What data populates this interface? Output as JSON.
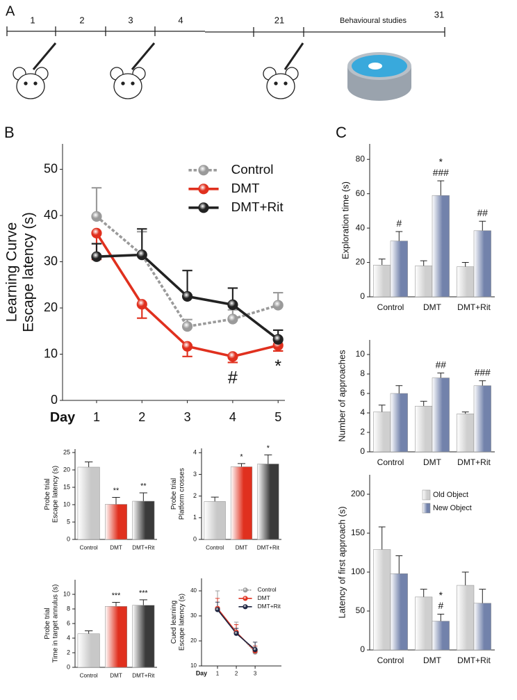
{
  "panel_labels": [
    "A",
    "B",
    "C"
  ],
  "timeline": {
    "labels": [
      "1",
      "2",
      "3",
      "4",
      "21",
      "Behavioural studies",
      "31"
    ]
  },
  "chart_data": [
    {
      "type": "line",
      "ylabel": [
        "Learning Curve",
        "Escape latency (s)"
      ],
      "xlabel": "Day",
      "x": [
        1,
        2,
        3,
        4,
        5
      ],
      "xlim": [
        0.25,
        5.15
      ],
      "xticks": [
        1,
        2,
        3,
        4,
        5
      ],
      "ylim": [
        0,
        55.5
      ],
      "yticks": [
        0,
        10,
        20,
        30,
        40,
        50
      ],
      "legend": "upper right",
      "series": [
        {
          "name": "Control",
          "color": "#9a9a9a",
          "style": "dotted",
          "values": [
            39.8,
            31.5,
            16,
            17.6,
            20.6
          ],
          "errors": [
            6.2,
            5,
            1.5,
            2,
            2.7
          ]
        },
        {
          "name": "DMT",
          "color": "#e0301e",
          "error_side": "down",
          "values": [
            36.2,
            20.8,
            11.7,
            9.5,
            11.9
          ],
          "errors": [
            5.7,
            3,
            2.2,
            1.3,
            1.2
          ],
          "significance": [
            null,
            null,
            null,
            "#",
            "*"
          ]
        },
        {
          "name": "DMT+Rit",
          "color": "#222222",
          "values": [
            31.1,
            31.5,
            22.5,
            20.7,
            13.2
          ],
          "errors": [
            2.8,
            5.6,
            5.6,
            3.6,
            2
          ]
        }
      ]
    },
    {
      "type": "bar",
      "ylabel": [
        "Probe trial",
        "Escape latency (s)"
      ],
      "categories": [
        "Control",
        "DMT",
        "DMT+Rit"
      ],
      "values": [
        20.8,
        10.1,
        11
      ],
      "errors": [
        1.5,
        2,
        2.4
      ],
      "colors": [
        "#c8c8c8",
        "#e0301e",
        "#3a3a3a"
      ],
      "significance": [
        null,
        "**",
        "**"
      ],
      "ylim": [
        0,
        26
      ],
      "yticks": [
        0,
        5,
        10,
        15,
        20,
        25
      ]
    },
    {
      "type": "bar",
      "ylabel": [
        "Probe trial",
        "Platform crosses"
      ],
      "categories": [
        "Control",
        "DMT",
        "DMT+Rit"
      ],
      "values": [
        1.75,
        3.35,
        3.48
      ],
      "errors": [
        0.2,
        0.15,
        0.42
      ],
      "colors": [
        "#c8c8c8",
        "#e0301e",
        "#3a3a3a"
      ],
      "significance": [
        null,
        "*",
        "*"
      ],
      "ylim": [
        0,
        4.2
      ],
      "yticks": [
        0,
        1,
        2,
        3,
        4
      ]
    },
    {
      "type": "bar",
      "ylabel": [
        "Probe trial",
        "Time in target annulus (s)"
      ],
      "categories": [
        "Control",
        "DMT",
        "DMT+Rit"
      ],
      "values": [
        4.6,
        8.35,
        8.5
      ],
      "errors": [
        0.4,
        0.55,
        0.75
      ],
      "colors": [
        "#c8c8c8",
        "#e0301e",
        "#3a3a3a"
      ],
      "significance": [
        null,
        "***",
        "***"
      ],
      "ylim": [
        0,
        12
      ],
      "yticks": [
        0,
        2,
        4,
        6,
        8,
        10
      ]
    },
    {
      "type": "line",
      "ylabel": [
        "Cued learning",
        "Escape latency (s)"
      ],
      "xlabel": "Day",
      "x": [
        1,
        2,
        3
      ],
      "xlim": [
        0.15,
        4.4
      ],
      "xticks": [
        1,
        2,
        3
      ],
      "ylim": [
        10,
        45
      ],
      "yticks": [
        10,
        20,
        30,
        40
      ],
      "legend": "upper right",
      "series": [
        {
          "name": "Control",
          "color": "#9a9a9a",
          "style": "dotted",
          "values": [
            33,
            23.5,
            15.5
          ],
          "errors": [
            7,
            4,
            2
          ]
        },
        {
          "name": "DMT",
          "color": "#e0301e",
          "values": [
            33,
            23.5,
            16
          ],
          "errors": [
            4,
            3,
            2
          ]
        },
        {
          "name": "DMT+Rit",
          "color": "#1d2440",
          "values": [
            32.5,
            23,
            16.5
          ],
          "errors": [
            3,
            2,
            3
          ]
        }
      ]
    },
    {
      "type": "grouped_bar",
      "ylabel": "Exploration time (s)",
      "categories": [
        "Control",
        "DMT",
        "DMT+Rit"
      ],
      "ylim": [
        0,
        89
      ],
      "yticks": [
        0,
        20,
        40,
        60,
        80
      ],
      "series": [
        {
          "color": "#cfcfcf",
          "values": [
            18.5,
            18,
            17.5
          ],
          "errors": [
            3.5,
            3,
            2.5
          ]
        },
        {
          "color": "#7282ab",
          "values": [
            32.5,
            59,
            38.5
          ],
          "errors": [
            5.5,
            8.5,
            5.5
          ],
          "significance": [
            [
              "#"
            ],
            [
              "*",
              "###"
            ],
            [
              "##"
            ]
          ]
        }
      ]
    },
    {
      "type": "grouped_bar",
      "ylabel": "Number of approaches",
      "categories": [
        "Control",
        "DMT",
        "DMT+Rit"
      ],
      "ylim": [
        0,
        11.5
      ],
      "yticks": [
        0,
        2,
        4,
        6,
        8,
        10
      ],
      "series": [
        {
          "color": "#cfcfcf",
          "values": [
            4.1,
            4.7,
            3.9
          ],
          "errors": [
            0.7,
            0.5,
            0.2
          ]
        },
        {
          "color": "#7282ab",
          "values": [
            6,
            7.6,
            6.8
          ],
          "errors": [
            0.8,
            0.5,
            0.5
          ],
          "significance": [
            null,
            [
              "##"
            ],
            [
              "###"
            ]
          ]
        }
      ]
    },
    {
      "type": "grouped_bar",
      "ylabel": "Latency of first approach (s)",
      "categories": [
        "Control",
        "DMT",
        "DMT+Rit"
      ],
      "ylim": [
        0,
        225
      ],
      "yticks": [
        0,
        50,
        100,
        150,
        200
      ],
      "legend": "upper right",
      "series": [
        {
          "name": "Old Object",
          "color": "#cfcfcf",
          "values": [
            129,
            68,
            83
          ],
          "errors": [
            29,
            10,
            17
          ]
        },
        {
          "name": "New Object",
          "color": "#7282ab",
          "values": [
            98,
            37,
            60
          ],
          "errors": [
            23,
            9,
            18
          ],
          "significance": [
            null,
            [
              "*",
              "#"
            ],
            null
          ]
        }
      ]
    }
  ]
}
